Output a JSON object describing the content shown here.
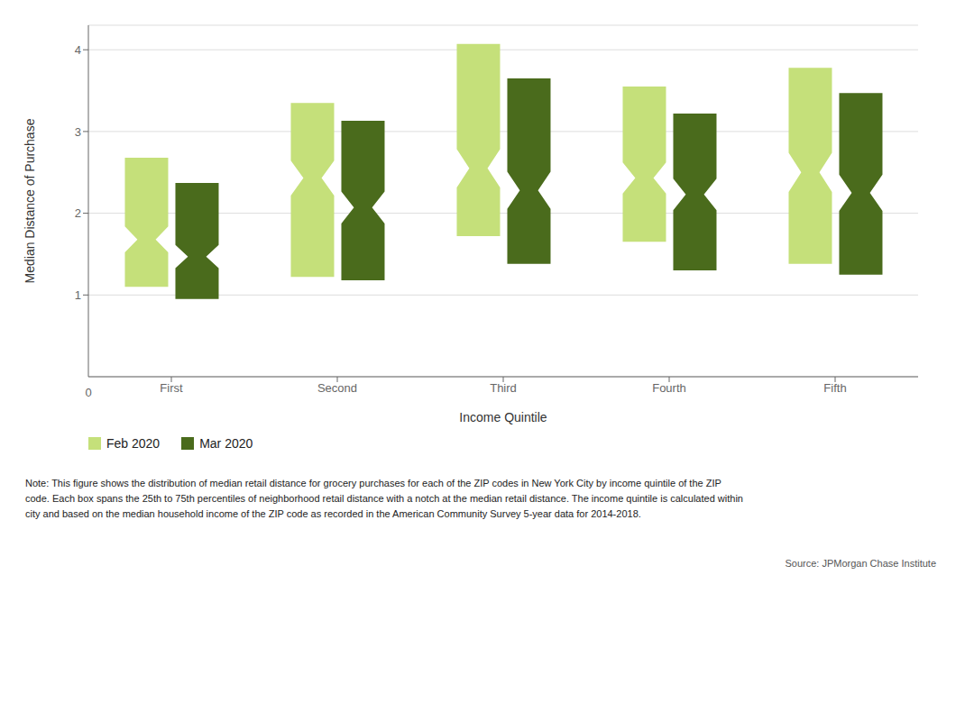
{
  "chart_data": {
    "type": "box",
    "categories": [
      "First",
      "Second",
      "Third",
      "Fourth",
      "Fifth"
    ],
    "series": [
      {
        "name": "Feb 2020",
        "color": "#c5e07a",
        "q1": [
          1.1,
          1.22,
          1.72,
          1.65,
          1.38
        ],
        "median": [
          1.68,
          2.43,
          2.55,
          2.43,
          2.5
        ],
        "q3": [
          2.68,
          3.35,
          4.07,
          3.55,
          3.78
        ]
      },
      {
        "name": "Mar 2020",
        "color": "#4a6b1c",
        "q1": [
          0.95,
          1.18,
          1.38,
          1.3,
          1.25
        ],
        "median": [
          1.47,
          2.07,
          2.28,
          2.23,
          2.25
        ],
        "q3": [
          2.37,
          3.13,
          3.65,
          3.22,
          3.47
        ]
      }
    ],
    "xlabel": "Income Quintile",
    "ylabel": "Median Distance of Purchase",
    "ylim": [
      0.0,
      4.3
    ],
    "yticks": [
      1,
      2,
      3,
      4
    ],
    "grid": true,
    "legend": "bottom",
    "origin_label": "0",
    "notes": [
      "Note: This figure shows the distribution of median retail distance for grocery purchases for each of the ZIP codes in New York City by income quintile of the ZIP",
      "code. Each box spans the 25th to 75th percentiles of neighborhood retail distance with a notch at the median retail distance. The income quintile is calculated within",
      "city and based on the median household income of the ZIP code as recorded in the American Community Survey 5-year data for 2014-2018."
    ],
    "source": "Source: JPMorgan Chase Institute"
  }
}
